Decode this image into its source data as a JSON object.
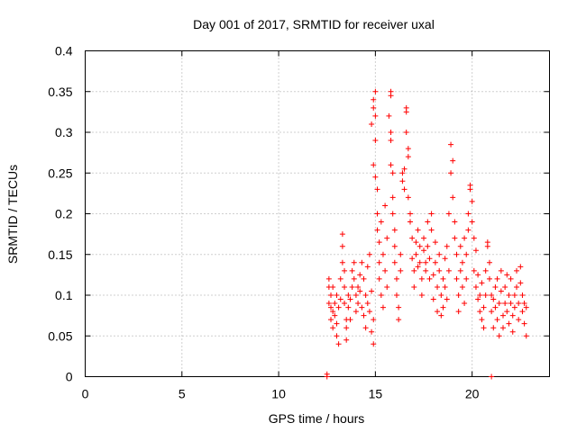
{
  "chart_data": {
    "type": "scatter",
    "title": "Day 001 of 2017, SRMTID for receiver uxal",
    "xlabel": "GPS time / hours",
    "ylabel": "SRMTID / TECUs",
    "xlim": [
      0,
      24
    ],
    "ylim": [
      0,
      0.4
    ],
    "grid": true,
    "marker": "+",
    "color": "#ff0000",
    "xticks": [
      0,
      5,
      10,
      15,
      20
    ],
    "xtick_labels": [
      "0",
      "5",
      "10",
      "15",
      "20"
    ],
    "yticks": [
      0,
      0.05,
      0.1,
      0.15,
      0.2,
      0.25,
      0.3,
      0.35,
      0.4
    ],
    "ytick_labels": [
      "0",
      "0.05",
      "0.1",
      "0.15",
      "0.2",
      "0.25",
      "0.3",
      "0.35",
      "0.4"
    ],
    "series": [
      {
        "name": "SRMTID",
        "points": [
          [
            12.5,
            0.0
          ],
          [
            12.5,
            0.003
          ],
          [
            21.0,
            0.0
          ],
          [
            12.6,
            0.12
          ],
          [
            12.6,
            0.11
          ],
          [
            12.6,
            0.09
          ],
          [
            12.7,
            0.07
          ],
          [
            12.7,
            0.085
          ],
          [
            12.7,
            0.1
          ],
          [
            12.8,
            0.06
          ],
          [
            12.8,
            0.08
          ],
          [
            12.8,
            0.11
          ],
          [
            12.9,
            0.075
          ],
          [
            12.9,
            0.09
          ],
          [
            13.0,
            0.1
          ],
          [
            13.0,
            0.065
          ],
          [
            13.0,
            0.05
          ],
          [
            13.1,
            0.04
          ],
          [
            13.1,
            0.085
          ],
          [
            13.2,
            0.095
          ],
          [
            13.2,
            0.12
          ],
          [
            13.3,
            0.14
          ],
          [
            13.3,
            0.16
          ],
          [
            13.3,
            0.175
          ],
          [
            13.4,
            0.13
          ],
          [
            13.4,
            0.11
          ],
          [
            13.4,
            0.09
          ],
          [
            13.5,
            0.07
          ],
          [
            13.5,
            0.06
          ],
          [
            13.5,
            0.045
          ],
          [
            13.6,
            0.085
          ],
          [
            13.6,
            0.1
          ],
          [
            13.7,
            0.095
          ],
          [
            13.7,
            0.07
          ],
          [
            13.8,
            0.11
          ],
          [
            13.8,
            0.13
          ],
          [
            13.9,
            0.14
          ],
          [
            13.9,
            0.12
          ],
          [
            14.0,
            0.1
          ],
          [
            14.0,
            0.08
          ],
          [
            14.1,
            0.11
          ],
          [
            14.1,
            0.09
          ],
          [
            14.2,
            0.125
          ],
          [
            14.2,
            0.105
          ],
          [
            14.3,
            0.14
          ],
          [
            14.3,
            0.085
          ],
          [
            14.4,
            0.12
          ],
          [
            14.4,
            0.075
          ],
          [
            14.5,
            0.1
          ],
          [
            14.5,
            0.06
          ],
          [
            14.6,
            0.09
          ],
          [
            14.6,
            0.135
          ],
          [
            14.7,
            0.08
          ],
          [
            14.7,
            0.15
          ],
          [
            14.8,
            0.105
          ],
          [
            14.8,
            0.055
          ],
          [
            14.9,
            0.07
          ],
          [
            14.9,
            0.04
          ],
          [
            14.8,
            0.31
          ],
          [
            14.9,
            0.34
          ],
          [
            14.9,
            0.33
          ],
          [
            15.0,
            0.35
          ],
          [
            15.0,
            0.32
          ],
          [
            15.0,
            0.29
          ],
          [
            14.9,
            0.26
          ],
          [
            15.0,
            0.245
          ],
          [
            15.1,
            0.23
          ],
          [
            15.1,
            0.2
          ],
          [
            15.1,
            0.18
          ],
          [
            15.2,
            0.165
          ],
          [
            15.2,
            0.14
          ],
          [
            15.2,
            0.12
          ],
          [
            15.3,
            0.19
          ],
          [
            15.3,
            0.1
          ],
          [
            15.4,
            0.15
          ],
          [
            15.4,
            0.085
          ],
          [
            15.5,
            0.13
          ],
          [
            15.5,
            0.21
          ],
          [
            15.6,
            0.17
          ],
          [
            15.6,
            0.11
          ],
          [
            15.8,
            0.35
          ],
          [
            15.8,
            0.345
          ],
          [
            15.8,
            0.3
          ],
          [
            15.8,
            0.29
          ],
          [
            15.7,
            0.32
          ],
          [
            15.8,
            0.26
          ],
          [
            15.9,
            0.25
          ],
          [
            15.9,
            0.22
          ],
          [
            15.9,
            0.2
          ],
          [
            16.0,
            0.18
          ],
          [
            16.0,
            0.16
          ],
          [
            16.0,
            0.14
          ],
          [
            16.1,
            0.12
          ],
          [
            16.1,
            0.1
          ],
          [
            16.2,
            0.085
          ],
          [
            16.2,
            0.07
          ],
          [
            16.3,
            0.13
          ],
          [
            16.3,
            0.15
          ],
          [
            16.4,
            0.24
          ],
          [
            16.4,
            0.25
          ],
          [
            16.5,
            0.255
          ],
          [
            16.5,
            0.23
          ],
          [
            16.6,
            0.33
          ],
          [
            16.6,
            0.325
          ],
          [
            16.6,
            0.3
          ],
          [
            16.7,
            0.28
          ],
          [
            16.7,
            0.27
          ],
          [
            16.7,
            0.22
          ],
          [
            16.8,
            0.2
          ],
          [
            16.8,
            0.19
          ],
          [
            16.9,
            0.17
          ],
          [
            16.9,
            0.145
          ],
          [
            17.0,
            0.13
          ],
          [
            17.0,
            0.11
          ],
          [
            17.1,
            0.165
          ],
          [
            17.1,
            0.15
          ],
          [
            17.2,
            0.135
          ],
          [
            17.2,
            0.18
          ],
          [
            17.3,
            0.16
          ],
          [
            17.3,
            0.14
          ],
          [
            17.4,
            0.12
          ],
          [
            17.4,
            0.1
          ],
          [
            17.5,
            0.155
          ],
          [
            17.5,
            0.17
          ],
          [
            17.6,
            0.14
          ],
          [
            17.6,
            0.13
          ],
          [
            17.7,
            0.19
          ],
          [
            17.7,
            0.16
          ],
          [
            17.8,
            0.12
          ],
          [
            17.8,
            0.145
          ],
          [
            17.9,
            0.18
          ],
          [
            17.9,
            0.2
          ],
          [
            18.0,
            0.125
          ],
          [
            18.0,
            0.095
          ],
          [
            18.1,
            0.14
          ],
          [
            18.1,
            0.165
          ],
          [
            18.2,
            0.11
          ],
          [
            18.2,
            0.08
          ],
          [
            18.3,
            0.13
          ],
          [
            18.3,
            0.15
          ],
          [
            18.4,
            0.1
          ],
          [
            18.4,
            0.075
          ],
          [
            18.5,
            0.12
          ],
          [
            18.5,
            0.085
          ],
          [
            18.6,
            0.145
          ],
          [
            18.6,
            0.11
          ],
          [
            18.7,
            0.16
          ],
          [
            18.7,
            0.095
          ],
          [
            18.8,
            0.13
          ],
          [
            18.8,
            0.2
          ],
          [
            18.9,
            0.285
          ],
          [
            18.9,
            0.25
          ],
          [
            19.0,
            0.265
          ],
          [
            19.0,
            0.22
          ],
          [
            19.1,
            0.19
          ],
          [
            19.1,
            0.17
          ],
          [
            19.2,
            0.15
          ],
          [
            19.2,
            0.12
          ],
          [
            19.3,
            0.1
          ],
          [
            19.3,
            0.08
          ],
          [
            19.4,
            0.13
          ],
          [
            19.4,
            0.16
          ],
          [
            19.5,
            0.14
          ],
          [
            19.5,
            0.11
          ],
          [
            19.6,
            0.17
          ],
          [
            19.6,
            0.09
          ],
          [
            19.7,
            0.12
          ],
          [
            19.7,
            0.15
          ],
          [
            19.8,
            0.18
          ],
          [
            19.8,
            0.2
          ],
          [
            19.9,
            0.235
          ],
          [
            19.9,
            0.23
          ],
          [
            20.0,
            0.215
          ],
          [
            20.0,
            0.19
          ],
          [
            20.1,
            0.17
          ],
          [
            20.1,
            0.13
          ],
          [
            20.2,
            0.155
          ],
          [
            20.2,
            0.11
          ],
          [
            20.3,
            0.125
          ],
          [
            20.3,
            0.095
          ],
          [
            20.4,
            0.08
          ],
          [
            20.4,
            0.1
          ],
          [
            20.5,
            0.115
          ],
          [
            20.5,
            0.07
          ],
          [
            20.6,
            0.085
          ],
          [
            20.6,
            0.06
          ],
          [
            20.7,
            0.1
          ],
          [
            20.7,
            0.13
          ],
          [
            20.8,
            0.16
          ],
          [
            20.8,
            0.165
          ],
          [
            20.9,
            0.14
          ],
          [
            20.9,
            0.12
          ],
          [
            21.0,
            0.1
          ],
          [
            21.0,
            0.08
          ],
          [
            21.1,
            0.06
          ],
          [
            21.1,
            0.095
          ],
          [
            21.2,
            0.11
          ],
          [
            21.2,
            0.085
          ],
          [
            21.3,
            0.12
          ],
          [
            21.3,
            0.07
          ],
          [
            21.4,
            0.05
          ],
          [
            21.4,
            0.09
          ],
          [
            21.5,
            0.13
          ],
          [
            21.5,
            0.105
          ],
          [
            21.6,
            0.075
          ],
          [
            21.6,
            0.06
          ],
          [
            21.7,
            0.09
          ],
          [
            21.7,
            0.11
          ],
          [
            21.8,
            0.125
          ],
          [
            21.8,
            0.08
          ],
          [
            21.9,
            0.065
          ],
          [
            21.9,
            0.1
          ],
          [
            22.0,
            0.12
          ],
          [
            22.0,
            0.09
          ],
          [
            22.1,
            0.075
          ],
          [
            22.1,
            0.055
          ],
          [
            22.2,
            0.085
          ],
          [
            22.2,
            0.1
          ],
          [
            22.3,
            0.13
          ],
          [
            22.3,
            0.11
          ],
          [
            22.4,
            0.09
          ],
          [
            22.4,
            0.07
          ],
          [
            22.5,
            0.135
          ],
          [
            22.5,
            0.115
          ],
          [
            22.6,
            0.1
          ],
          [
            22.6,
            0.08
          ],
          [
            22.7,
            0.065
          ],
          [
            22.7,
            0.09
          ],
          [
            22.8,
            0.05
          ],
          [
            22.8,
            0.085
          ]
        ]
      }
    ]
  }
}
